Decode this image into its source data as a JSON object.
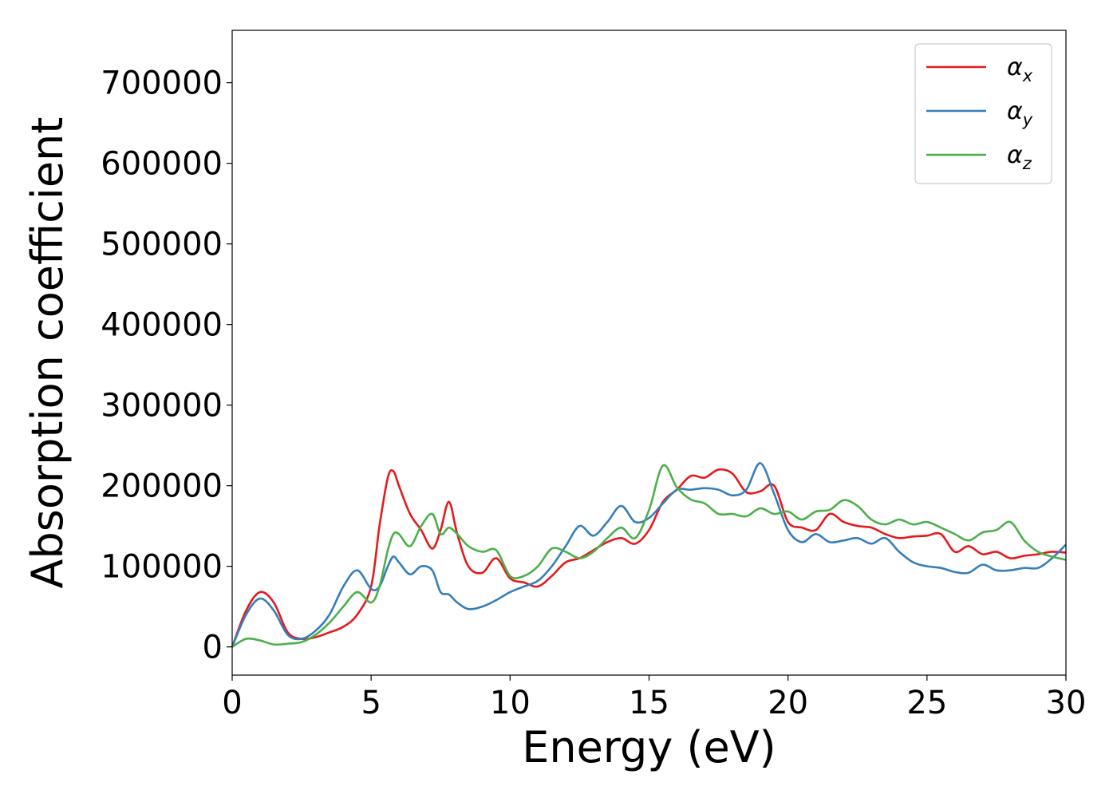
{
  "chart_data": {
    "type": "line",
    "xlabel": "Energy (eV)",
    "ylabel": "Absorption coefficient",
    "xlim": [
      0,
      30
    ],
    "ylim": [
      -35000,
      765000
    ],
    "xticks": [
      0,
      5,
      10,
      15,
      20,
      25,
      30
    ],
    "yticks": [
      0,
      100000,
      200000,
      300000,
      400000,
      500000,
      600000,
      700000
    ],
    "grid": false,
    "legend_position": "top-right",
    "series": [
      {
        "name": "α_x",
        "label_base": "α",
        "label_sub": "x",
        "color": "#e41a1c",
        "x": [
          0,
          0.5,
          1.0,
          1.5,
          2.0,
          2.5,
          3.0,
          3.5,
          4.0,
          4.5,
          5.0,
          5.3,
          5.6,
          5.8,
          6.0,
          6.4,
          6.8,
          7.2,
          7.5,
          7.8,
          8.1,
          8.5,
          9.0,
          9.5,
          10.0,
          10.5,
          11.0,
          11.5,
          12.0,
          12.5,
          13.0,
          13.5,
          14.0,
          14.5,
          15.0,
          15.5,
          16.0,
          16.5,
          17.0,
          17.5,
          18.0,
          18.5,
          19.0,
          19.5,
          20.0,
          20.5,
          21.0,
          21.5,
          22.0,
          22.5,
          23.0,
          23.5,
          24.0,
          24.5,
          25.0,
          25.5,
          26.0,
          26.5,
          27.0,
          27.5,
          28.0,
          28.5,
          29.0,
          29.5,
          30.0
        ],
        "y": [
          0,
          45000,
          68000,
          55000,
          18000,
          10000,
          12000,
          18000,
          25000,
          40000,
          75000,
          150000,
          210000,
          218000,
          200000,
          165000,
          145000,
          122000,
          145000,
          180000,
          140000,
          100000,
          92000,
          110000,
          85000,
          80000,
          75000,
          88000,
          105000,
          110000,
          120000,
          130000,
          135000,
          128000,
          145000,
          180000,
          195000,
          212000,
          210000,
          220000,
          215000,
          192000,
          193000,
          200000,
          155000,
          148000,
          145000,
          165000,
          155000,
          150000,
          148000,
          140000,
          135000,
          137000,
          138000,
          140000,
          118000,
          125000,
          115000,
          118000,
          110000,
          113000,
          115000,
          118000,
          117000
        ]
      },
      {
        "name": "α_y",
        "label_base": "α",
        "label_sub": "y",
        "color": "#377eb8",
        "x": [
          0,
          0.5,
          1.0,
          1.5,
          2.0,
          2.5,
          3.0,
          3.5,
          4.0,
          4.5,
          5.0,
          5.3,
          5.6,
          5.8,
          6.0,
          6.4,
          6.8,
          7.2,
          7.5,
          7.8,
          8.1,
          8.5,
          9.0,
          9.5,
          10.0,
          10.5,
          11.0,
          11.5,
          12.0,
          12.5,
          13.0,
          13.5,
          14.0,
          14.5,
          15.0,
          15.5,
          16.0,
          16.5,
          17.0,
          17.5,
          18.0,
          18.5,
          19.0,
          19.5,
          20.0,
          20.5,
          21.0,
          21.5,
          22.0,
          22.5,
          23.0,
          23.5,
          24.0,
          24.5,
          25.0,
          25.5,
          26.0,
          26.5,
          27.0,
          27.5,
          28.0,
          28.5,
          29.0,
          29.5,
          30.0
        ],
        "y": [
          0,
          40000,
          60000,
          45000,
          15000,
          10000,
          20000,
          40000,
          75000,
          95000,
          72000,
          75000,
          100000,
          112000,
          105000,
          90000,
          100000,
          95000,
          68000,
          65000,
          55000,
          47000,
          50000,
          58000,
          68000,
          75000,
          82000,
          100000,
          125000,
          150000,
          138000,
          155000,
          175000,
          155000,
          160000,
          178000,
          195000,
          195000,
          197000,
          195000,
          188000,
          195000,
          228000,
          190000,
          145000,
          130000,
          140000,
          130000,
          132000,
          135000,
          128000,
          135000,
          118000,
          105000,
          100000,
          98000,
          93000,
          92000,
          102000,
          95000,
          95000,
          98000,
          98000,
          110000,
          127000
        ]
      },
      {
        "name": "α_z",
        "label_base": "α",
        "label_sub": "z",
        "color": "#4daf4a",
        "x": [
          0,
          0.5,
          1.0,
          1.5,
          2.0,
          2.5,
          3.0,
          3.5,
          4.0,
          4.5,
          5.0,
          5.3,
          5.6,
          5.8,
          6.0,
          6.4,
          6.8,
          7.2,
          7.5,
          7.8,
          8.1,
          8.5,
          9.0,
          9.5,
          10.0,
          10.5,
          11.0,
          11.5,
          12.0,
          12.5,
          13.0,
          13.5,
          14.0,
          14.5,
          15.0,
          15.5,
          16.0,
          16.5,
          17.0,
          17.5,
          18.0,
          18.5,
          19.0,
          19.5,
          20.0,
          20.5,
          21.0,
          21.5,
          22.0,
          22.5,
          23.0,
          23.5,
          24.0,
          24.5,
          25.0,
          25.5,
          26.0,
          26.5,
          27.0,
          27.5,
          28.0,
          28.5,
          29.0,
          29.5,
          30.0
        ],
        "y": [
          0,
          10000,
          8000,
          3000,
          4000,
          6000,
          15000,
          30000,
          50000,
          68000,
          55000,
          75000,
          120000,
          140000,
          140000,
          125000,
          150000,
          165000,
          140000,
          148000,
          140000,
          125000,
          118000,
          120000,
          88000,
          88000,
          100000,
          122000,
          118000,
          110000,
          118000,
          135000,
          148000,
          135000,
          170000,
          225000,
          198000,
          183000,
          178000,
          165000,
          165000,
          162000,
          172000,
          165000,
          168000,
          158000,
          168000,
          170000,
          182000,
          175000,
          158000,
          152000,
          158000,
          152000,
          155000,
          148000,
          140000,
          132000,
          142000,
          145000,
          155000,
          132000,
          118000,
          112000,
          108000
        ]
      }
    ]
  }
}
